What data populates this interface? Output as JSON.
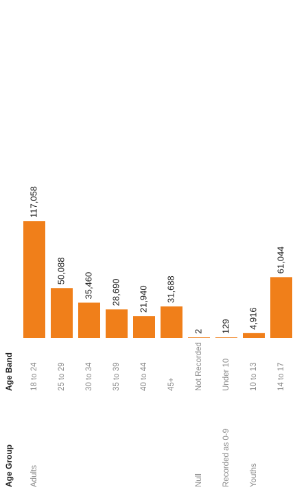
{
  "chart_data": {
    "type": "bar",
    "orientation": "horizontal",
    "headers": {
      "group": "Age Group",
      "band": "Age Band"
    },
    "categories": [
      {
        "group": "Adults",
        "band": "18 to 24",
        "value": 117058,
        "label": "117,058"
      },
      {
        "group": "",
        "band": "25 to 29",
        "value": 50088,
        "label": "50,088"
      },
      {
        "group": "",
        "band": "30 to 34",
        "value": 35460,
        "label": "35,460"
      },
      {
        "group": "",
        "band": "35 to 39",
        "value": 28690,
        "label": "28,690"
      },
      {
        "group": "",
        "band": "40 to 44",
        "value": 21940,
        "label": "21,940"
      },
      {
        "group": "",
        "band": "45+",
        "value": 31688,
        "label": "31,688"
      },
      {
        "group": "Null",
        "band": "Not Recorded",
        "value": 2,
        "label": "2"
      },
      {
        "group": "Recorded as 0-9",
        "band": "Under 10",
        "value": 129,
        "label": "129"
      },
      {
        "group": "Youths",
        "band": "10 to 13",
        "value": 4916,
        "label": "4,916"
      },
      {
        "group": "",
        "band": "14 to 17",
        "value": 61044,
        "label": "61,044"
      }
    ],
    "xlim": [
      0,
      117058
    ],
    "grid": false,
    "bar_color": "#f07f1a"
  }
}
